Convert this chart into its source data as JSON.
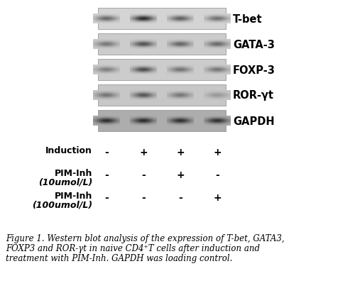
{
  "background_color": "#ffffff",
  "bands": [
    {
      "label": "T-bet",
      "row": 0,
      "lane_intensities": [
        0.6,
        0.95,
        0.65,
        0.55
      ],
      "bg_gray": 0.83
    },
    {
      "label": "GATA-3",
      "row": 1,
      "lane_intensities": [
        0.5,
        0.72,
        0.6,
        0.58
      ],
      "bg_gray": 0.8
    },
    {
      "label": "FOXP-3",
      "row": 2,
      "lane_intensities": [
        0.45,
        0.75,
        0.52,
        0.5
      ],
      "bg_gray": 0.8
    },
    {
      "label": "ROR-γt",
      "row": 3,
      "lane_intensities": [
        0.5,
        0.68,
        0.48,
        0.28
      ],
      "bg_gray": 0.78
    },
    {
      "label": "GAPDH",
      "row": 4,
      "lane_intensities": [
        0.88,
        0.9,
        0.87,
        0.86
      ],
      "bg_gray": 0.68
    }
  ],
  "n_lanes": 4,
  "label_fontsize": 10.5,
  "treatment_rows": [
    {
      "name": "Induction",
      "sub": null,
      "values": [
        "-",
        "+",
        "+",
        "+"
      ]
    },
    {
      "name": "PIM-Inh",
      "sub": "(10umol/L)",
      "values": [
        "-",
        "-",
        "+",
        "-"
      ]
    },
    {
      "name": "PIM-Inh",
      "sub": "(100umol/L)",
      "values": [
        "-",
        "-",
        "-",
        "+"
      ]
    }
  ],
  "caption_line1": "Figure 1. Western blot analysis of the expression of T-bet, GATA3,",
  "caption_line2": "FOXP3 and ROR-γt in naive CD4⁺T cells after induction and",
  "caption_line3": "treatment with PIM-Inh. GAPDH was loading control.",
  "caption_fontsize": 8.5
}
